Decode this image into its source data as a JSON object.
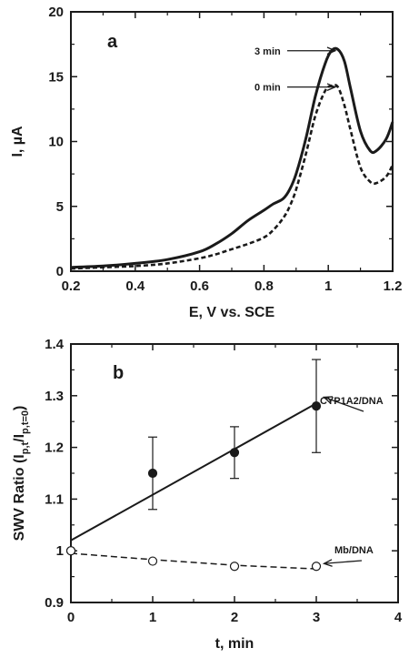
{
  "chart_data": [
    {
      "type": "line",
      "panel_label": "a",
      "xlabel": "E, V vs. SCE",
      "ylabel": "I, µA",
      "xlim": [
        0.2,
        1.2
      ],
      "ylim": [
        0,
        20
      ],
      "x_ticks": [
        "0.2",
        "0.4",
        "0.6",
        "0.8",
        "1",
        "1.2"
      ],
      "y_ticks": [
        "0",
        "5",
        "10",
        "15",
        "20"
      ],
      "series": [
        {
          "name": "3 min",
          "style": "solid",
          "x": [
            0.2,
            0.3,
            0.4,
            0.5,
            0.6,
            0.65,
            0.7,
            0.75,
            0.8,
            0.83,
            0.86,
            0.88,
            0.9,
            0.93,
            0.96,
            0.99,
            1.01,
            1.03,
            1.05,
            1.07,
            1.1,
            1.13,
            1.15,
            1.18,
            1.2
          ],
          "y": [
            0.3,
            0.4,
            0.6,
            0.9,
            1.5,
            2.1,
            2.9,
            3.9,
            4.7,
            5.2,
            5.6,
            6.3,
            7.5,
            10.2,
            13.5,
            16.0,
            17.0,
            17.1,
            16.2,
            14.0,
            10.8,
            9.3,
            9.3,
            10.2,
            11.5
          ]
        },
        {
          "name": "0 min",
          "style": "dashed",
          "x": [
            0.2,
            0.3,
            0.4,
            0.5,
            0.6,
            0.65,
            0.7,
            0.75,
            0.8,
            0.83,
            0.86,
            0.88,
            0.9,
            0.93,
            0.96,
            0.99,
            1.01,
            1.03,
            1.05,
            1.07,
            1.1,
            1.13,
            1.15,
            1.18,
            1.2
          ],
          "y": [
            0.2,
            0.3,
            0.4,
            0.6,
            1.0,
            1.3,
            1.7,
            2.1,
            2.6,
            3.2,
            4.1,
            5.0,
            6.3,
            9.0,
            12.0,
            13.9,
            14.3,
            14.2,
            12.8,
            10.8,
            8.0,
            6.9,
            6.8,
            7.3,
            8.2
          ]
        }
      ],
      "annotations": [
        {
          "text": "3 min",
          "target": [
            1.03,
            17.0
          ]
        },
        {
          "text": "0 min",
          "target": [
            1.03,
            14.2
          ]
        }
      ]
    },
    {
      "type": "scatter",
      "panel_label": "b",
      "xlabel": "t, min",
      "ylabel": "SWV Ratio (I",
      "ylabel_parts": [
        "p,t",
        "/I",
        "p,t=0",
        ")"
      ],
      "xlim": [
        0,
        4
      ],
      "ylim": [
        0.9,
        1.4
      ],
      "x_ticks": [
        "0",
        "1",
        "2",
        "3",
        "4"
      ],
      "y_ticks": [
        "0.9",
        "1",
        "1.1",
        "1.2",
        "1.3",
        "1.4"
      ],
      "series": [
        {
          "name": "CYP1A2/DNA",
          "marker": "filled-circle",
          "x": [
            0,
            1,
            2,
            3
          ],
          "y": [
            1.0,
            1.15,
            1.19,
            1.28
          ],
          "yerr": [
            0,
            0.07,
            0.05,
            0.09
          ],
          "fit": {
            "style": "solid",
            "x": [
              0,
              3
            ],
            "y": [
              1.02,
              1.285
            ]
          }
        },
        {
          "name": "Mb/DNA",
          "marker": "open-circle",
          "x": [
            0,
            1,
            2,
            3
          ],
          "y": [
            1.0,
            0.98,
            0.97,
            0.97
          ],
          "fit": {
            "style": "dashed",
            "x": [
              0,
              1,
              2,
              3
            ],
            "y": [
              0.995,
              0.983,
              0.972,
              0.965
            ]
          }
        }
      ],
      "annotations": [
        {
          "text": "CYP1A2/DNA",
          "target": [
            3.05,
            1.29
          ]
        },
        {
          "text": "Mb/DNA",
          "target": [
            3.05,
            0.97
          ]
        }
      ]
    }
  ]
}
